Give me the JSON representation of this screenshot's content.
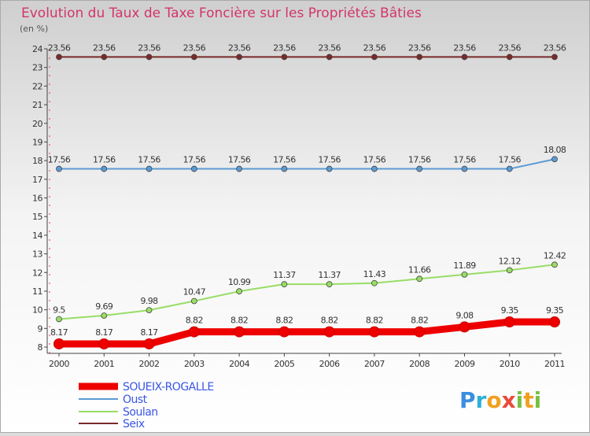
{
  "chart_data": {
    "type": "line",
    "title": "Evolution du Taux de Taxe Foncière sur les Propriétés Bâties",
    "ylabel": "(en %)",
    "xlabel": "",
    "ylim": [
      8,
      24
    ],
    "yticks": [
      8,
      9,
      10,
      11,
      12,
      13,
      14,
      15,
      16,
      17,
      18,
      19,
      20,
      21,
      22,
      23,
      24
    ],
    "categories": [
      "2000",
      "2001",
      "2002",
      "2003",
      "2004",
      "2005",
      "2006",
      "2007",
      "2008",
      "2009",
      "2010",
      "2011"
    ],
    "grid": false,
    "legend_position": "bottom-left",
    "series": [
      {
        "name": "SOUEIX-ROGALLE",
        "color": "#ee0000",
        "values": [
          8.17,
          8.17,
          8.17,
          8.82,
          8.82,
          8.82,
          8.82,
          8.82,
          8.82,
          9.08,
          9.35,
          9.35
        ],
        "labels": [
          "8.17",
          "8.17",
          "8.17",
          "8.82",
          "8.82",
          "8.82",
          "8.82",
          "8.82",
          "8.82",
          "9.08",
          "9.35",
          "9.35"
        ]
      },
      {
        "name": "Oust",
        "color": "#5b9bd5",
        "values": [
          17.56,
          17.56,
          17.56,
          17.56,
          17.56,
          17.56,
          17.56,
          17.56,
          17.56,
          17.56,
          17.56,
          18.08
        ],
        "labels": [
          "17.56",
          "17.56",
          "17.56",
          "17.56",
          "17.56",
          "17.56",
          "17.56",
          "17.56",
          "17.56",
          "17.56",
          "17.56",
          "18.08"
        ]
      },
      {
        "name": "Soulan",
        "color": "#99dd66",
        "values": [
          9.5,
          9.69,
          9.98,
          10.47,
          10.99,
          11.37,
          11.37,
          11.43,
          11.66,
          11.89,
          12.12,
          12.42
        ],
        "labels": [
          "9.5",
          "9.69",
          "9.98",
          "10.47",
          "10.99",
          "11.37",
          "11.37",
          "11.43",
          "11.66",
          "11.89",
          "12.12",
          "12.42"
        ]
      },
      {
        "name": "Seix",
        "color": "#7a2a2a",
        "values": [
          23.56,
          23.56,
          23.56,
          23.56,
          23.56,
          23.56,
          23.56,
          23.56,
          23.56,
          23.56,
          23.56,
          23.56
        ],
        "labels": [
          "23.56",
          "23.56",
          "23.56",
          "23.56",
          "23.56",
          "23.56",
          "23.56",
          "23.56",
          "23.56",
          "23.56",
          "23.56",
          "23.56"
        ]
      }
    ]
  },
  "colors": {
    "title": "#d2356a",
    "axis": "#444444",
    "legend_text": "#3a56e6"
  },
  "logo": {
    "text": "Proxiti"
  }
}
